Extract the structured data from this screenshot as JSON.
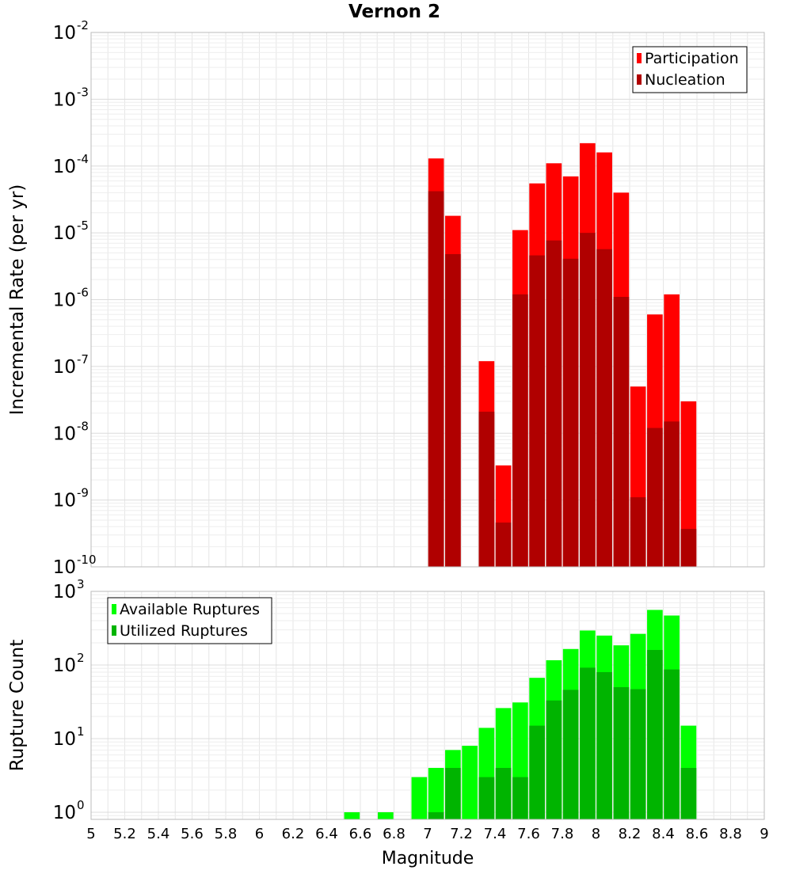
{
  "title": "Vernon 2",
  "colors": {
    "participation": "#ff0000",
    "nucleation": "#b00000",
    "available": "#00ff00",
    "utilized": "#00b400",
    "grid": "#e6e6e6",
    "frame": "#bbbbbb"
  },
  "chart_data": [
    {
      "type": "bar",
      "id": "rate",
      "title": "Vernon 2",
      "xlabel": "",
      "ylabel": "Incremental Rate (per yr)",
      "yscale": "log",
      "xlim": [
        5,
        9
      ],
      "ylim": [
        1e-10,
        0.01
      ],
      "y_tick_exponents": [
        "-10",
        "-9",
        "-8",
        "-7",
        "-6",
        "-5",
        "-4",
        "-3",
        "-2"
      ],
      "bar_width": 0.1,
      "legend": {
        "placement": "top-right",
        "items": [
          "Participation",
          "Nucleation"
        ]
      },
      "x": [
        7.05,
        7.15,
        7.35,
        7.45,
        7.55,
        7.65,
        7.75,
        7.85,
        7.95,
        8.05,
        8.15,
        8.25,
        8.35,
        8.45,
        8.55
      ],
      "series": [
        {
          "name": "Participation",
          "values": [
            0.00013,
            1.8e-05,
            1.2e-07,
            3.3e-09,
            1.1e-05,
            5.5e-05,
            0.00011,
            7e-05,
            0.00022,
            0.00016,
            4e-05,
            5e-08,
            6e-07,
            1.2e-06,
            3e-08
          ]
        },
        {
          "name": "Nucleation",
          "values": [
            4.2e-05,
            4.8e-06,
            2.1e-08,
            4.6e-10,
            1.2e-06,
            4.6e-06,
            7.7e-06,
            4.1e-06,
            1e-05,
            5.7e-06,
            1.1e-06,
            1.1e-09,
            1.2e-08,
            1.5e-08,
            3.7e-10
          ]
        }
      ]
    },
    {
      "type": "bar",
      "id": "count",
      "title": "",
      "xlabel": "Magnitude",
      "ylabel": "Rupture Count",
      "yscale": "log",
      "xlim": [
        5,
        9
      ],
      "ylim": [
        0.8,
        1000
      ],
      "y_tick_exponents": [
        "0",
        "1",
        "2",
        "3"
      ],
      "x_ticks": [
        "5",
        "5.2",
        "5.4",
        "5.6",
        "5.8",
        "6",
        "6.2",
        "6.4",
        "6.6",
        "6.8",
        "7",
        "7.2",
        "7.4",
        "7.6",
        "7.8",
        "8",
        "8.2",
        "8.4",
        "8.6",
        "8.8",
        "9"
      ],
      "bar_width": 0.1,
      "legend": {
        "placement": "top-left",
        "items": [
          "Available Ruptures",
          "Utilized Ruptures"
        ]
      },
      "x": [
        6.55,
        6.75,
        6.95,
        7.05,
        7.15,
        7.25,
        7.35,
        7.45,
        7.55,
        7.65,
        7.75,
        7.85,
        7.95,
        8.05,
        8.15,
        8.25,
        8.35,
        8.45,
        8.55
      ],
      "series": [
        {
          "name": "Available Ruptures",
          "values": [
            1,
            1,
            3,
            4,
            7,
            8,
            14,
            26,
            31,
            67,
            116,
            165,
            294,
            251,
            185,
            265,
            560,
            470,
            15
          ]
        },
        {
          "name": "Utilized Ruptures",
          "values": [
            null,
            null,
            null,
            1,
            4,
            null,
            3,
            4,
            3,
            15,
            33,
            46,
            92,
            80,
            50,
            47,
            160,
            87,
            4
          ]
        }
      ]
    }
  ]
}
